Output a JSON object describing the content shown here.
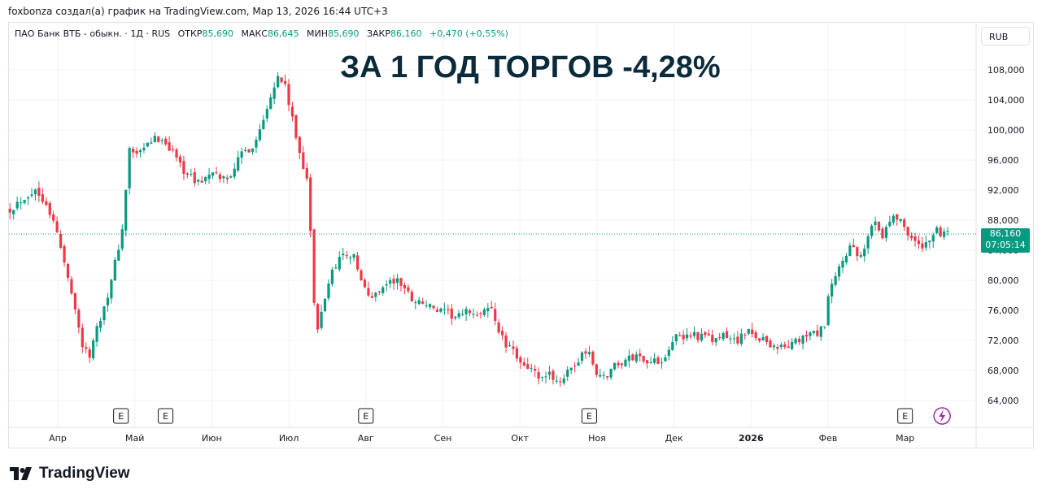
{
  "header": {
    "caption": "foxbonza создал(а) график на TradingView.com, Мар 13, 2026 16:44 UTC+3"
  },
  "legend": {
    "symbol": "ПАО Банк ВТБ - обыкн. · 1Д · RUS",
    "open_label": "ОТКР",
    "open": "85,690",
    "high_label": "МАКС",
    "high": "86,645",
    "low_label": "МИН",
    "low": "85,690",
    "close_label": "ЗАКР",
    "close": "86,160",
    "change": "+0,470 (+0,55%)"
  },
  "currency_button": {
    "label": "RUB"
  },
  "price_label": {
    "price": "86,160",
    "countdown": "07:05:14"
  },
  "brand": {
    "name": "TradingView"
  },
  "colors": {
    "up": "#089981",
    "down": "#f23645",
    "grid": "#f0f3fa",
    "text": "#131722",
    "title": "#0b2a3a",
    "event": "#9c27b0"
  },
  "chart_data": {
    "type": "candlestick",
    "title": "ЗА 1 ГОД ТОРГОВ -4,28%",
    "x_ticks": [
      "Апр",
      "Май",
      "Июн",
      "Июл",
      "Авг",
      "Сен",
      "Окт",
      "Ноя",
      "Дек",
      "2026",
      "Фев",
      "Мар"
    ],
    "y_ticks": [
      "64,000",
      "68,000",
      "72,000",
      "76,000",
      "80,000",
      "84,000",
      "88,000",
      "92,000",
      "96,000",
      "100,000",
      "104,000",
      "108,000"
    ],
    "y_tick_values": [
      64,
      68,
      72,
      76,
      80,
      84,
      88,
      92,
      96,
      100,
      104,
      108
    ],
    "ylim": [
      61.4,
      110.6
    ],
    "grid": true,
    "last_price": 86.16,
    "event_markers": [
      {
        "label": "E",
        "month": 0.82
      },
      {
        "label": "E",
        "month": 1.4
      },
      {
        "label": "E",
        "month": 4.0
      },
      {
        "label": "E",
        "month": 6.9
      },
      {
        "label": "E",
        "month": 11.0
      }
    ],
    "special_marker": {
      "icon": "lightning-icon",
      "month": 11.48
    },
    "series": [
      {
        "m": -0.62,
        "c": 89.5
      },
      {
        "m": -0.45,
        "c": 91.0
      },
      {
        "m": -0.3,
        "c": 92.0
      },
      {
        "m": -0.15,
        "c": 90.5
      },
      {
        "m": 0.0,
        "c": 86.0
      },
      {
        "m": 0.1,
        "c": 81.5
      },
      {
        "m": 0.2,
        "c": 78.0
      },
      {
        "m": 0.3,
        "c": 72.0
      },
      {
        "m": 0.4,
        "c": 69.5
      },
      {
        "m": 0.5,
        "c": 73.5
      },
      {
        "m": 0.6,
        "c": 76.5
      },
      {
        "m": 0.7,
        "c": 80.0
      },
      {
        "m": 0.78,
        "c": 84.0
      },
      {
        "m": 0.86,
        "c": 88.0
      },
      {
        "m": 0.92,
        "c": 97.5
      },
      {
        "m": 1.05,
        "c": 96.5
      },
      {
        "m": 1.2,
        "c": 98.5
      },
      {
        "m": 1.35,
        "c": 99.0
      },
      {
        "m": 1.5,
        "c": 97.0
      },
      {
        "m": 1.65,
        "c": 94.5
      },
      {
        "m": 1.8,
        "c": 93.0
      },
      {
        "m": 2.0,
        "c": 94.0
      },
      {
        "m": 2.2,
        "c": 93.5
      },
      {
        "m": 2.4,
        "c": 97.0
      },
      {
        "m": 2.55,
        "c": 98.0
      },
      {
        "m": 2.65,
        "c": 101.0
      },
      {
        "m": 2.75,
        "c": 104.5
      },
      {
        "m": 2.85,
        "c": 107.0
      },
      {
        "m": 2.95,
        "c": 106.0
      },
      {
        "m": 3.05,
        "c": 101.0
      },
      {
        "m": 3.15,
        "c": 96.5
      },
      {
        "m": 3.25,
        "c": 93.2
      },
      {
        "m": 3.35,
        "c": 72.0
      },
      {
        "m": 3.45,
        "c": 77.0
      },
      {
        "m": 3.55,
        "c": 81.0
      },
      {
        "m": 3.65,
        "c": 83.0
      },
      {
        "m": 3.75,
        "c": 83.5
      },
      {
        "m": 3.85,
        "c": 83.0
      },
      {
        "m": 3.95,
        "c": 79.5
      },
      {
        "m": 4.05,
        "c": 77.5
      },
      {
        "m": 4.15,
        "c": 78.5
      },
      {
        "m": 4.25,
        "c": 79.5
      },
      {
        "m": 4.4,
        "c": 80.0
      },
      {
        "m": 4.5,
        "c": 79.0
      },
      {
        "m": 4.6,
        "c": 77.5
      },
      {
        "m": 4.75,
        "c": 77.0
      },
      {
        "m": 4.9,
        "c": 76.0
      },
      {
        "m": 5.05,
        "c": 75.5
      },
      {
        "m": 5.2,
        "c": 75.0
      },
      {
        "m": 5.35,
        "c": 76.0
      },
      {
        "m": 5.5,
        "c": 75.0
      },
      {
        "m": 5.6,
        "c": 77.0
      },
      {
        "m": 5.7,
        "c": 74.0
      },
      {
        "m": 5.8,
        "c": 71.5
      },
      {
        "m": 5.9,
        "c": 70.5
      },
      {
        "m": 6.0,
        "c": 69.5
      },
      {
        "m": 6.1,
        "c": 68.5
      },
      {
        "m": 6.2,
        "c": 67.5
      },
      {
        "m": 6.3,
        "c": 66.5
      },
      {
        "m": 6.4,
        "c": 67.5
      },
      {
        "m": 6.5,
        "c": 66.5
      },
      {
        "m": 6.6,
        "c": 67.5
      },
      {
        "m": 6.7,
        "c": 68.0
      },
      {
        "m": 6.8,
        "c": 70.5
      },
      {
        "m": 6.9,
        "c": 70.0
      },
      {
        "m": 7.0,
        "c": 67.5
      },
      {
        "m": 7.1,
        "c": 67.0
      },
      {
        "m": 7.2,
        "c": 68.5
      },
      {
        "m": 7.3,
        "c": 69.0
      },
      {
        "m": 7.4,
        "c": 69.5
      },
      {
        "m": 7.55,
        "c": 70.0
      },
      {
        "m": 7.7,
        "c": 69.0
      },
      {
        "m": 7.85,
        "c": 69.5
      },
      {
        "m": 8.0,
        "c": 72.5
      },
      {
        "m": 8.1,
        "c": 72.0
      },
      {
        "m": 8.2,
        "c": 73.0
      },
      {
        "m": 8.35,
        "c": 72.5
      },
      {
        "m": 8.5,
        "c": 72.0
      },
      {
        "m": 8.65,
        "c": 72.5
      },
      {
        "m": 8.8,
        "c": 72.0
      },
      {
        "m": 8.95,
        "c": 73.0
      },
      {
        "m": 9.1,
        "c": 72.5
      },
      {
        "m": 9.25,
        "c": 71.5
      },
      {
        "m": 9.4,
        "c": 71.0
      },
      {
        "m": 9.55,
        "c": 71.5
      },
      {
        "m": 9.7,
        "c": 72.5
      },
      {
        "m": 9.85,
        "c": 73.0
      },
      {
        "m": 9.95,
        "c": 73.5
      },
      {
        "m": 10.0,
        "c": 77.5
      },
      {
        "m": 10.1,
        "c": 80.5
      },
      {
        "m": 10.2,
        "c": 83.0
      },
      {
        "m": 10.3,
        "c": 84.5
      },
      {
        "m": 10.4,
        "c": 82.5
      },
      {
        "m": 10.5,
        "c": 85.0
      },
      {
        "m": 10.6,
        "c": 88.5
      },
      {
        "m": 10.7,
        "c": 86.0
      },
      {
        "m": 10.8,
        "c": 88.0
      },
      {
        "m": 10.9,
        "c": 88.5
      },
      {
        "m": 11.0,
        "c": 87.0
      },
      {
        "m": 11.1,
        "c": 85.5
      },
      {
        "m": 11.2,
        "c": 84.0
      },
      {
        "m": 11.3,
        "c": 85.5
      },
      {
        "m": 11.4,
        "c": 86.5
      },
      {
        "m": 11.5,
        "c": 86.0
      },
      {
        "m": 11.58,
        "c": 86.16
      }
    ]
  }
}
